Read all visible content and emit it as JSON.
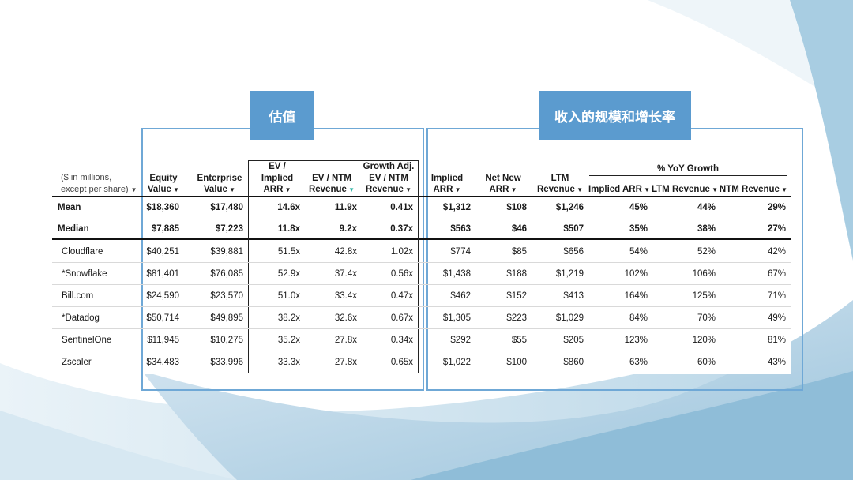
{
  "sections": {
    "valuation_title": "估值",
    "scale_growth_title": "收入的规模和增长率"
  },
  "header_note": [
    "($ in millions,",
    "except per share)"
  ],
  "growth_group_label": "% YoY Growth",
  "columns": [
    {
      "l1": "Equity",
      "l2": "Value"
    },
    {
      "l1": "Enterprise",
      "l2": "Value"
    },
    {
      "l0": "EV /",
      "l1": "Implied",
      "l2": "ARR"
    },
    {
      "l1": "EV / NTM",
      "l2": "Revenue"
    },
    {
      "l0": "Growth Adj.",
      "l1": "EV / NTM",
      "l2": "Revenue"
    },
    {
      "l1": "Implied",
      "l2": "ARR"
    },
    {
      "l1": "Net New",
      "l2": "ARR"
    },
    {
      "l1": "LTM",
      "l2": "Revenue"
    },
    {
      "l2": "Implied ARR"
    },
    {
      "l2": "LTM Revenue"
    },
    {
      "l2": "NTM Revenue"
    }
  ],
  "summary_rows": [
    {
      "label": "Mean",
      "values": [
        "$18,360",
        "$17,480",
        "14.6x",
        "11.9x",
        "0.41x",
        "$1,312",
        "$108",
        "$1,246",
        "45%",
        "44%",
        "29%"
      ]
    },
    {
      "label": "Median",
      "values": [
        "$7,885",
        "$7,223",
        "11.8x",
        "9.2x",
        "0.37x",
        "$563",
        "$46",
        "$507",
        "35%",
        "38%",
        "27%"
      ]
    }
  ],
  "rows": [
    {
      "label": "Cloudflare",
      "values": [
        "$40,251",
        "$39,881",
        "51.5x",
        "42.8x",
        "1.02x",
        "$774",
        "$85",
        "$656",
        "54%",
        "52%",
        "42%"
      ]
    },
    {
      "label": "*Snowflake",
      "values": [
        "$81,401",
        "$76,085",
        "52.9x",
        "37.4x",
        "0.56x",
        "$1,438",
        "$188",
        "$1,219",
        "102%",
        "106%",
        "67%"
      ]
    },
    {
      "label": "Bill.com",
      "values": [
        "$24,590",
        "$23,570",
        "51.0x",
        "33.4x",
        "0.47x",
        "$462",
        "$152",
        "$413",
        "164%",
        "125%",
        "71%"
      ]
    },
    {
      "label": "*Datadog",
      "values": [
        "$50,714",
        "$49,895",
        "38.2x",
        "32.6x",
        "0.67x",
        "$1,305",
        "$223",
        "$1,029",
        "84%",
        "70%",
        "49%"
      ]
    },
    {
      "label": "SentinelOne",
      "values": [
        "$11,945",
        "$10,275",
        "35.2x",
        "27.8x",
        "0.34x",
        "$292",
        "$55",
        "$205",
        "123%",
        "120%",
        "81%"
      ]
    },
    {
      "label": "Zscaler",
      "values": [
        "$34,483",
        "$33,996",
        "33.3x",
        "27.8x",
        "0.65x",
        "$1,022",
        "$100",
        "$860",
        "63%",
        "60%",
        "43%"
      ]
    }
  ],
  "colors": {
    "accent_blue": "#5b9bcf",
    "box_border": "#6fa8d6",
    "sort_arrow_active": "#2bb3a3"
  }
}
